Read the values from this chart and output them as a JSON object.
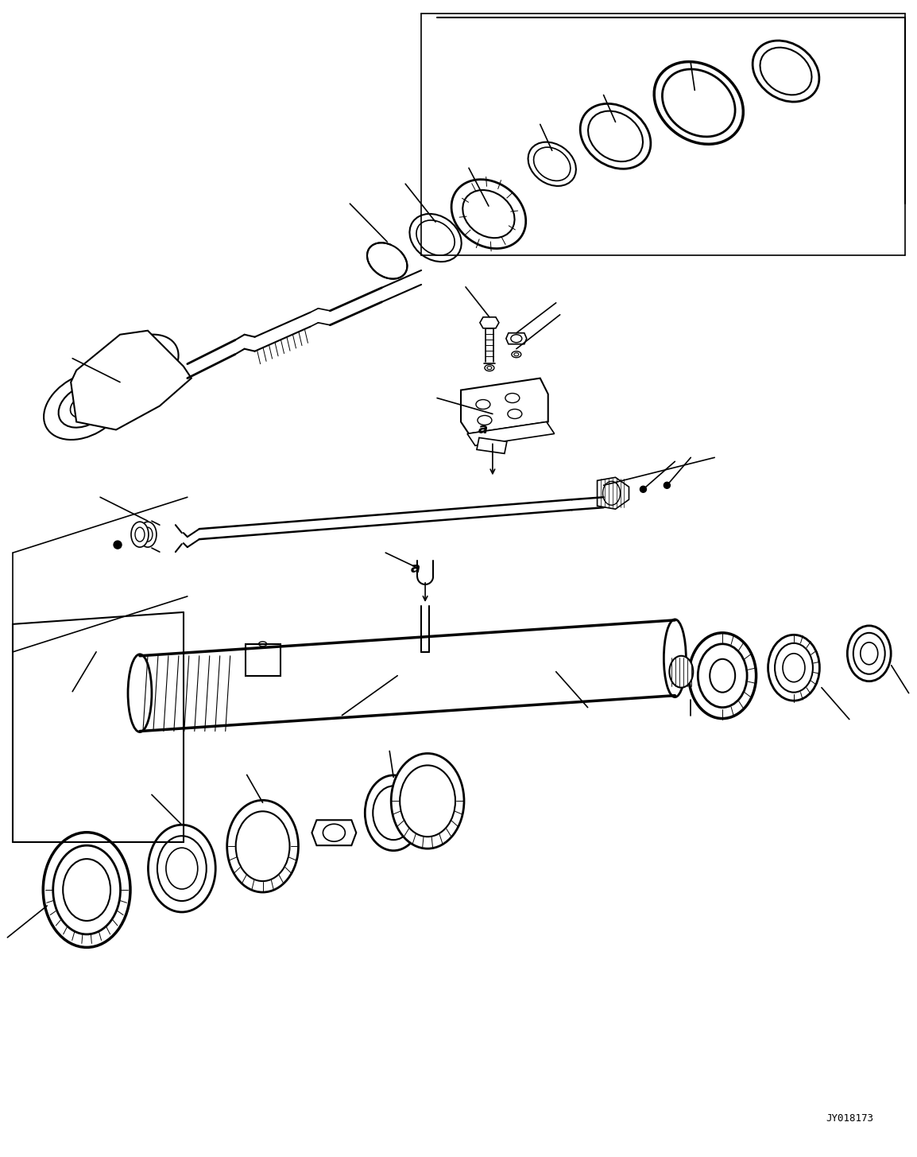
{
  "figure_width": 11.54,
  "figure_height": 14.55,
  "dpi": 100,
  "background_color": "#ffffff",
  "line_color": "#000000",
  "line_width": 1.2,
  "watermark_text": "JY018173",
  "watermark_fontsize": 9
}
